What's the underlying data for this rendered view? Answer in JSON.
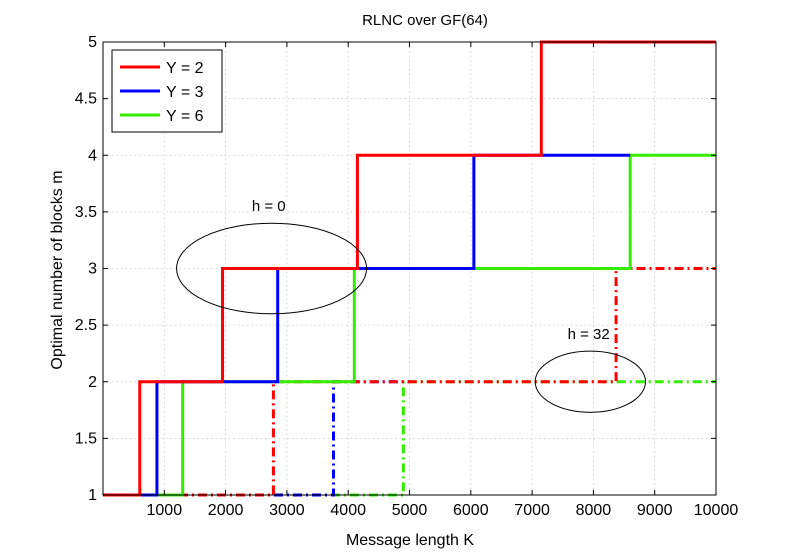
{
  "chart_data": {
    "type": "line",
    "title": "RLNC over GF(64)",
    "xlabel": "Message length K",
    "ylabel": "Optimal number of blocks m",
    "xlim": [
      0,
      10000
    ],
    "ylim": [
      1,
      5
    ],
    "xticks": [
      1000,
      2000,
      3000,
      4000,
      5000,
      6000,
      7000,
      8000,
      9000,
      10000
    ],
    "yticks": [
      1,
      1.5,
      2,
      2.5,
      3,
      3.5,
      4,
      4.5,
      5
    ],
    "xtick_labels": [
      "1000",
      "2000",
      "3000",
      "4000",
      "5000",
      "6000",
      "7000",
      "8000",
      "9000",
      "10000"
    ],
    "ytick_labels": [
      "1",
      "1.5",
      "2",
      "2.5",
      "3",
      "3.5",
      "4",
      "4.5",
      "5"
    ],
    "grid": true,
    "legend_position": "top-left",
    "legend": [
      "Y = 2",
      "Y = 3",
      "Y = 6"
    ],
    "series": [
      {
        "name": "Y = 2",
        "h": 0,
        "style": "solid",
        "color": "#ff0000",
        "x": [
          0,
          600,
          600,
          1950,
          1950,
          4150,
          4150,
          7150,
          7150,
          10000
        ],
        "y": [
          1,
          1,
          2,
          2,
          3,
          3,
          4,
          4,
          5,
          5
        ]
      },
      {
        "name": "Y = 3",
        "h": 0,
        "style": "solid",
        "color": "#0000ff",
        "x": [
          0,
          880,
          880,
          2850,
          2850,
          6050,
          6050,
          8600
        ],
        "y": [
          1,
          1,
          2,
          2,
          3,
          3,
          4,
          4
        ]
      },
      {
        "name": "Y = 6",
        "h": 0,
        "style": "solid",
        "color": "#33ee00",
        "x": [
          0,
          1300,
          1300,
          4100,
          4100,
          8600,
          8600,
          10000
        ],
        "y": [
          1,
          1,
          2,
          2,
          3,
          3,
          4,
          4
        ]
      },
      {
        "name": "Y = 2",
        "h": 32,
        "style": "dashdot",
        "color": "#ff0000",
        "x": [
          0,
          2780,
          2780,
          8370,
          8370,
          10000
        ],
        "y": [
          1,
          1,
          2,
          2,
          3,
          3
        ]
      },
      {
        "name": "Y = 3",
        "h": 32,
        "style": "dashdot",
        "color": "#0000ff",
        "x": [
          0,
          3760,
          3760,
          5000
        ],
        "y": [
          1,
          1,
          2,
          2
        ]
      },
      {
        "name": "Y = 6",
        "h": 32,
        "style": "dashdot",
        "color": "#33ee00",
        "x": [
          0,
          4900,
          4900,
          10000
        ],
        "y": [
          1,
          1,
          2,
          2
        ]
      }
    ],
    "annotations": [
      {
        "text": "h = 0",
        "ellipse_center": [
          2750,
          3
        ],
        "ellipse_radii": [
          1550,
          0.4
        ]
      },
      {
        "text": "h = 32",
        "ellipse_center": [
          7950,
          2
        ],
        "ellipse_radii": [
          900,
          0.27
        ]
      }
    ]
  }
}
